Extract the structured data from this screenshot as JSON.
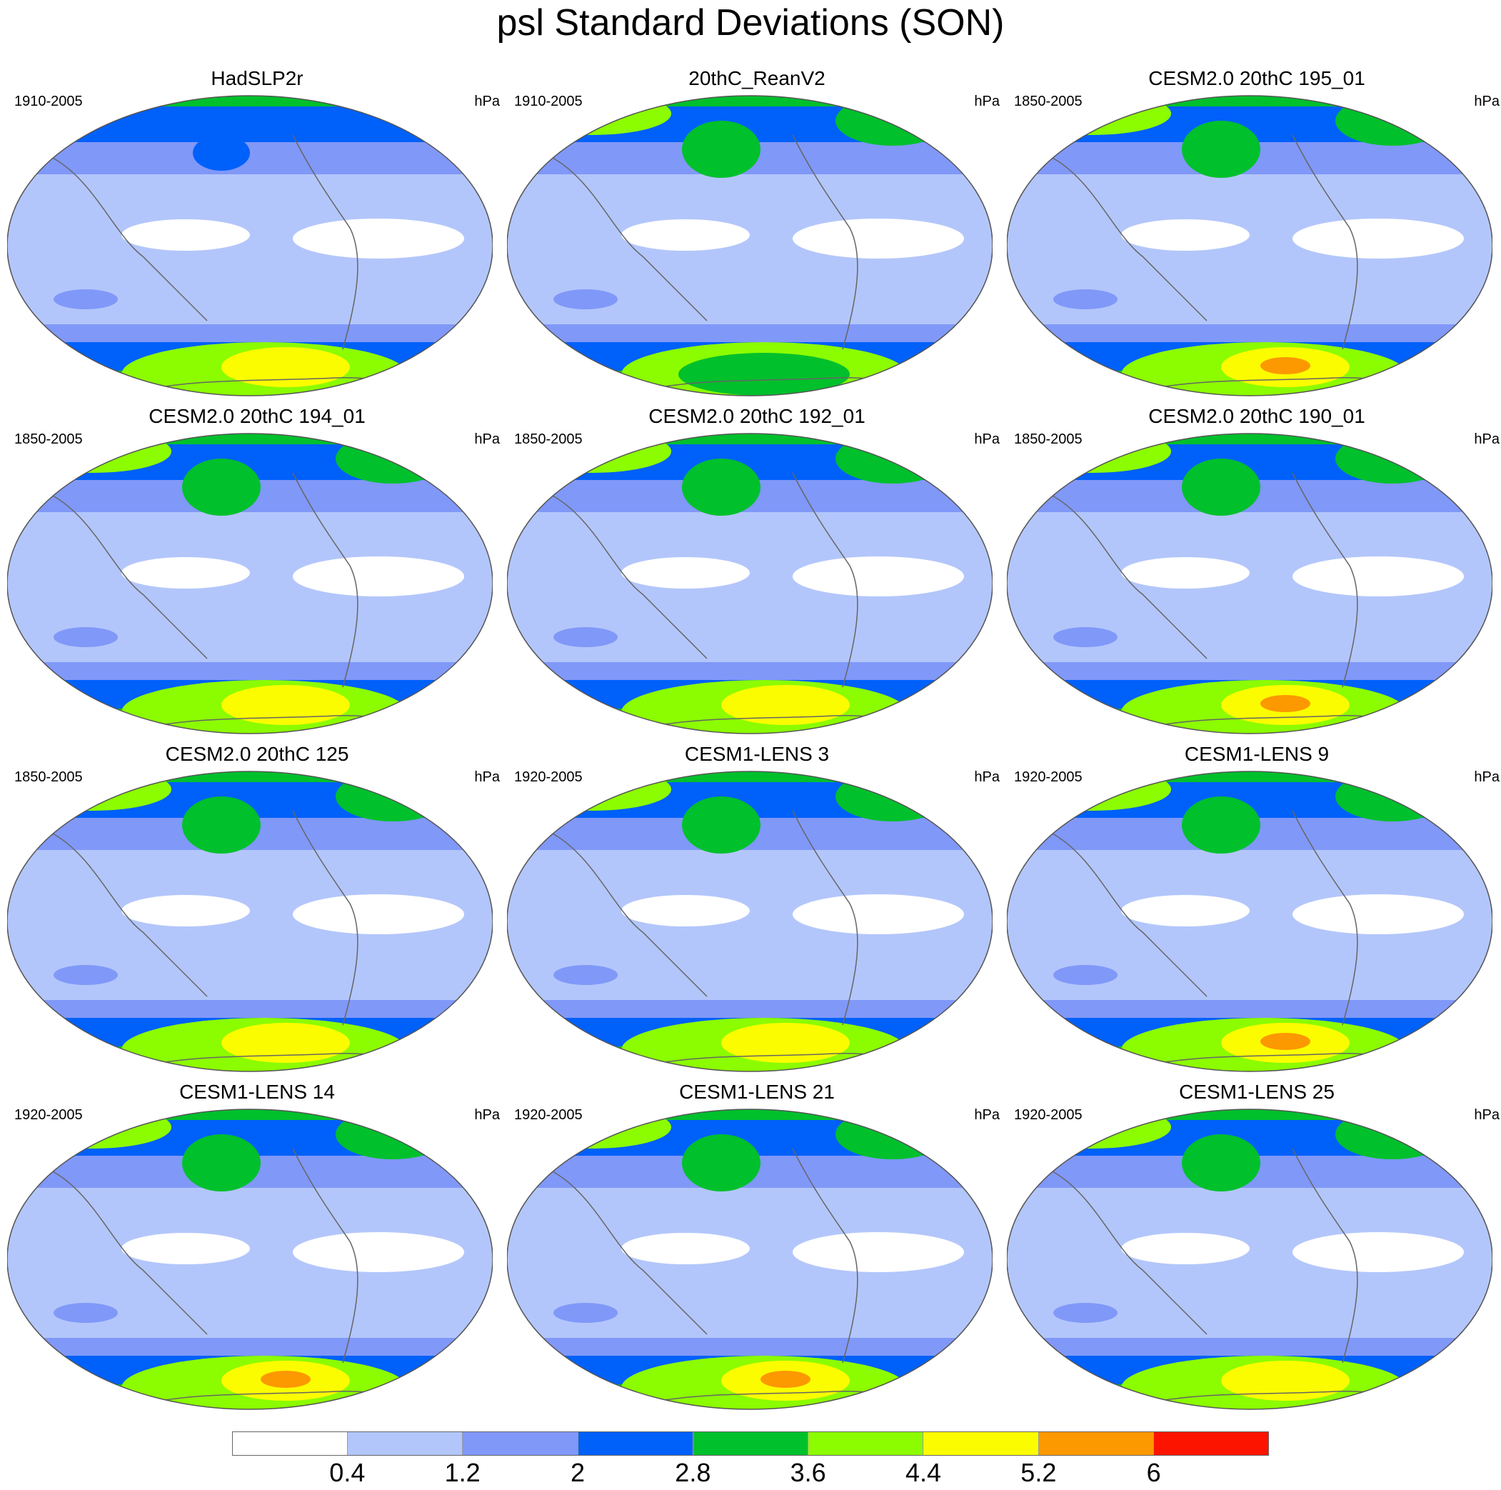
{
  "title": "psl Standard Deviations (SON)",
  "colorbar": {
    "colors": [
      "#ffffff",
      "#b3c6fb",
      "#8098f8",
      "#0060fa",
      "#00c02c",
      "#8cfc00",
      "#fcfc00",
      "#fc9800",
      "#fc1400"
    ],
    "labels": [
      "0.4",
      "1.2",
      "2",
      "2.8",
      "3.6",
      "4.4",
      "5.2",
      "6"
    ]
  },
  "panels": [
    {
      "title": "HadSLP2r",
      "period": "1910-2005",
      "units": "hPa",
      "south_peak": "yellow",
      "north": "weak"
    },
    {
      "title": "20thC_ReanV2",
      "period": "1910-2005",
      "units": "hPa",
      "south_peak": "green",
      "north": "strong"
    },
    {
      "title": "CESM2.0 20thC 195_01",
      "period": "1850-2005",
      "units": "hPa",
      "south_peak": "orange",
      "north": "strong"
    },
    {
      "title": "CESM2.0 20thC 194_01",
      "period": "1850-2005",
      "units": "hPa",
      "south_peak": "yellow",
      "north": "strong"
    },
    {
      "title": "CESM2.0 20thC 192_01",
      "period": "1850-2005",
      "units": "hPa",
      "south_peak": "yellow",
      "north": "strong"
    },
    {
      "title": "CESM2.0 20thC 190_01",
      "period": "1850-2005",
      "units": "hPa",
      "south_peak": "orange",
      "north": "strong"
    },
    {
      "title": "CESM2.0 20thC 125",
      "period": "1850-2005",
      "units": "hPa",
      "south_peak": "yellow",
      "north": "strong"
    },
    {
      "title": "CESM1-LENS 3",
      "period": "1920-2005",
      "units": "hPa",
      "south_peak": "yellow",
      "north": "strong"
    },
    {
      "title": "CESM1-LENS 9",
      "period": "1920-2005",
      "units": "hPa",
      "south_peak": "orange",
      "north": "strong"
    },
    {
      "title": "CESM1-LENS 14",
      "period": "1920-2005",
      "units": "hPa",
      "south_peak": "orange",
      "north": "strong"
    },
    {
      "title": "CESM1-LENS 21",
      "period": "1920-2005",
      "units": "hPa",
      "south_peak": "orange",
      "north": "strong"
    },
    {
      "title": "CESM1-LENS 25",
      "period": "1920-2005",
      "units": "hPa",
      "south_peak": "yellow",
      "north": "strong"
    }
  ]
}
